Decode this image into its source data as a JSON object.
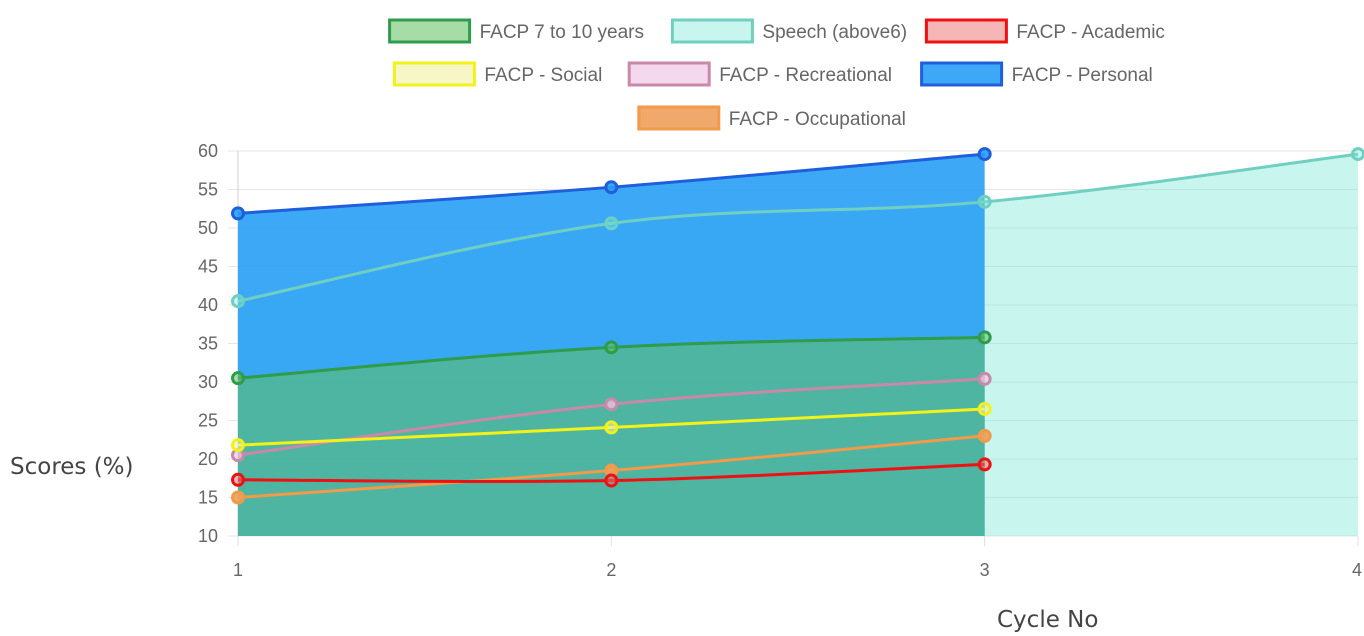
{
  "chart_data": {
    "type": "area",
    "xlabel": "Cycle No",
    "ylabel": "Scores (%)",
    "ylim": [
      10,
      60
    ],
    "y_ticks": [
      "10",
      "15",
      "20",
      "25",
      "30",
      "35",
      "40",
      "45",
      "50",
      "55",
      "60"
    ],
    "x_ticks": [
      "1",
      "2",
      "3",
      "4"
    ],
    "grid": "horizontal",
    "legend_position": "top",
    "series": [
      {
        "name": "FACP 7 to 10 years",
        "x": [
          1,
          2,
          3
        ],
        "values": [
          30.5,
          34.5,
          35.8
        ],
        "color": "#2e9c4a",
        "fill": "rgba(94,191,92,0.55)",
        "filled": true
      },
      {
        "name": "Speech (above6)",
        "x": [
          1,
          2,
          3,
          4
        ],
        "values": [
          40.5,
          50.6,
          53.4,
          59.6
        ],
        "color": "#6fd0c1",
        "fill": "rgba(120,230,215,0.4)",
        "filled": true
      },
      {
        "name": "FACP - Academic",
        "x": [
          1,
          2,
          3
        ],
        "values": [
          17.3,
          17.2,
          19.3
        ],
        "color": "#ee1111",
        "fill": "rgba(240,110,110,0.5)",
        "filled": false
      },
      {
        "name": "FACP - Social",
        "x": [
          1,
          2,
          3
        ],
        "values": [
          21.8,
          24.1,
          26.5
        ],
        "color": "#f2f21a",
        "fill": "rgba(240,240,160,0.6)",
        "filled": false
      },
      {
        "name": "FACP - Recreational",
        "x": [
          1,
          2,
          3
        ],
        "values": [
          20.5,
          27.1,
          30.4
        ],
        "color": "#c88aa8",
        "fill": "rgba(240,200,230,0.7)",
        "filled": false
      },
      {
        "name": "FACP - Personal",
        "x": [
          1,
          2,
          3
        ],
        "values": [
          51.9,
          55.3,
          59.6
        ],
        "color": "#1f5fdc",
        "fill": "rgba(40,160,245,0.9)",
        "filled": true
      },
      {
        "name": "FACP - Occupational",
        "x": [
          1,
          2,
          3
        ],
        "values": [
          15.0,
          18.5,
          23.0
        ],
        "color": "#f09a4a",
        "fill": "rgba(238,160,90,0.9)",
        "filled": false
      }
    ]
  }
}
